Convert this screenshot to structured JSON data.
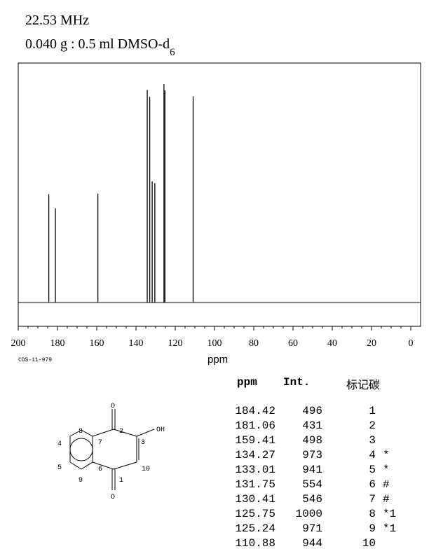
{
  "header": {
    "frequency": "22.53 MHz",
    "sample_main": "0.040 g : 0.5 ml DMSO-d",
    "sample_sub": "6"
  },
  "spectrum_code": "CDS-11-979",
  "x_axis_label": "ppm",
  "table": {
    "headers": {
      "ppm": "ppm",
      "int": "Int.",
      "carbon": "标记碳"
    },
    "rows": [
      {
        "ppm": "184.42",
        "int": "496",
        "idx": "1",
        "mark": ""
      },
      {
        "ppm": "181.06",
        "int": "431",
        "idx": "2",
        "mark": ""
      },
      {
        "ppm": "159.41",
        "int": "498",
        "idx": "3",
        "mark": ""
      },
      {
        "ppm": "134.27",
        "int": "973",
        "idx": "4",
        "mark": "*"
      },
      {
        "ppm": "133.01",
        "int": "941",
        "idx": "5",
        "mark": "*"
      },
      {
        "ppm": "131.75",
        "int": "554",
        "idx": "6",
        "mark": "#"
      },
      {
        "ppm": "130.41",
        "int": "546",
        "idx": "7",
        "mark": "#"
      },
      {
        "ppm": "125.75",
        "int": "1000",
        "idx": "8",
        "mark": "*1"
      },
      {
        "ppm": "125.24",
        "int": "971",
        "idx": "9",
        "mark": "*1"
      },
      {
        "ppm": "110.88",
        "int": "944",
        "idx": "10",
        "mark": ""
      }
    ]
  },
  "structure": {
    "atom_labels": [
      "O",
      "OH",
      "O",
      "1",
      "2",
      "3",
      "4",
      "5",
      "6",
      "7",
      "8",
      "9",
      "10"
    ]
  },
  "chart_data": {
    "type": "bar",
    "x_reversed": true,
    "xlim": [
      0,
      200
    ],
    "ylim": [
      0,
      1000
    ],
    "xticks": [
      "200",
      "180",
      "160",
      "140",
      "120",
      "100",
      "80",
      "60",
      "40",
      "20",
      "0"
    ],
    "xlabel": "ppm",
    "peaks": [
      {
        "ppm": 184.42,
        "intensity": 496
      },
      {
        "ppm": 181.06,
        "intensity": 431
      },
      {
        "ppm": 159.41,
        "intensity": 498
      },
      {
        "ppm": 134.27,
        "intensity": 973
      },
      {
        "ppm": 133.01,
        "intensity": 941
      },
      {
        "ppm": 131.75,
        "intensity": 554
      },
      {
        "ppm": 130.41,
        "intensity": 546
      },
      {
        "ppm": 125.75,
        "intensity": 1000
      },
      {
        "ppm": 125.24,
        "intensity": 971
      },
      {
        "ppm": 110.88,
        "intensity": 944
      }
    ]
  }
}
